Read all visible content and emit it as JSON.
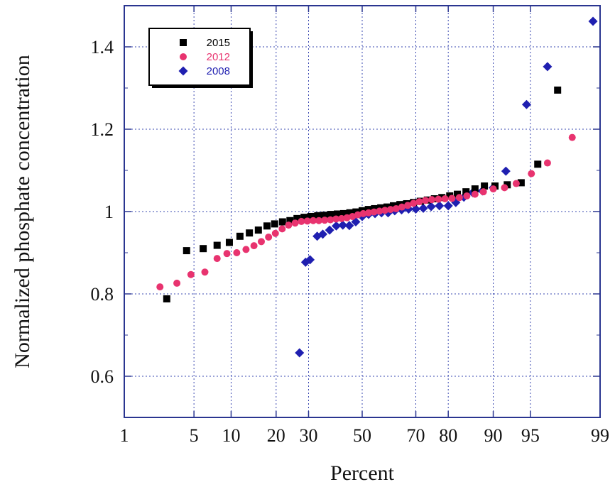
{
  "chart_data": {
    "type": "scatter",
    "title": "",
    "xlabel": "Percent",
    "ylabel": "Normalized phosphate concentration",
    "x_scale": "normal-probability",
    "x_ticks": [
      1,
      5,
      10,
      20,
      30,
      50,
      70,
      80,
      90,
      95,
      99
    ],
    "x_tick_labels": [
      "1",
      "5",
      "10",
      "20",
      "30",
      "50",
      "70",
      "80",
      "90",
      "95",
      "99"
    ],
    "y_ticks": [
      0.6,
      0.8,
      1,
      1.2,
      1.4
    ],
    "y_tick_labels": [
      "0.6",
      "0.8",
      "1",
      "1.2",
      "1.4"
    ],
    "xlim": [
      1,
      99
    ],
    "ylim": [
      0.5,
      1.5
    ],
    "grid": true,
    "legend_position": "top-left",
    "series": [
      {
        "name": "2015",
        "marker": "square",
        "color": "#000000",
        "points": [
          [
            2.8,
            0.788
          ],
          [
            4.3,
            0.905
          ],
          [
            6.0,
            0.91
          ],
          [
            7.8,
            0.918
          ],
          [
            9.7,
            0.925
          ],
          [
            11.6,
            0.94
          ],
          [
            13.5,
            0.948
          ],
          [
            15.5,
            0.955
          ],
          [
            17.6,
            0.965
          ],
          [
            19.6,
            0.97
          ],
          [
            21.8,
            0.975
          ],
          [
            24.0,
            0.978
          ],
          [
            26.2,
            0.983
          ],
          [
            28.5,
            0.986
          ],
          [
            30.8,
            0.988
          ],
          [
            33.2,
            0.99
          ],
          [
            35.6,
            0.991
          ],
          [
            38.0,
            0.993
          ],
          [
            40.4,
            0.994
          ],
          [
            42.8,
            0.995
          ],
          [
            45.2,
            0.997
          ],
          [
            47.6,
            0.999
          ],
          [
            50.0,
            1.002
          ],
          [
            52.4,
            1.005
          ],
          [
            54.8,
            1.007
          ],
          [
            57.2,
            1.009
          ],
          [
            59.6,
            1.011
          ],
          [
            62.0,
            1.014
          ],
          [
            64.4,
            1.017
          ],
          [
            66.8,
            1.019
          ],
          [
            69.2,
            1.022
          ],
          [
            71.5,
            1.025
          ],
          [
            73.8,
            1.028
          ],
          [
            76.0,
            1.031
          ],
          [
            78.2,
            1.034
          ],
          [
            80.4,
            1.038
          ],
          [
            82.4,
            1.042
          ],
          [
            84.5,
            1.048
          ],
          [
            86.5,
            1.055
          ],
          [
            88.4,
            1.062
          ],
          [
            90.3,
            1.062
          ],
          [
            92.2,
            1.065
          ],
          [
            94.0,
            1.07
          ],
          [
            95.7,
            1.115
          ],
          [
            97.2,
            1.295
          ]
        ]
      },
      {
        "name": "2012",
        "marker": "circle",
        "color": "#e8336f",
        "points": [
          [
            2.4,
            0.817
          ],
          [
            3.5,
            0.826
          ],
          [
            4.7,
            0.847
          ],
          [
            6.2,
            0.853
          ],
          [
            7.8,
            0.886
          ],
          [
            9.3,
            0.898
          ],
          [
            11.0,
            0.9
          ],
          [
            12.8,
            0.908
          ],
          [
            14.5,
            0.917
          ],
          [
            16.2,
            0.927
          ],
          [
            18.0,
            0.938
          ],
          [
            19.8,
            0.947
          ],
          [
            21.7,
            0.958
          ],
          [
            23.6,
            0.967
          ],
          [
            25.6,
            0.972
          ],
          [
            27.6,
            0.976
          ],
          [
            29.6,
            0.977
          ],
          [
            31.6,
            0.978
          ],
          [
            33.6,
            0.978
          ],
          [
            35.7,
            0.979
          ],
          [
            37.8,
            0.98
          ],
          [
            39.9,
            0.982
          ],
          [
            42.0,
            0.983
          ],
          [
            44.1,
            0.985
          ],
          [
            46.2,
            0.988
          ],
          [
            48.3,
            0.992
          ],
          [
            50.4,
            0.995
          ],
          [
            52.5,
            0.997
          ],
          [
            54.6,
            0.999
          ],
          [
            56.7,
            1.001
          ],
          [
            58.8,
            1.003
          ],
          [
            60.9,
            1.005
          ],
          [
            63.0,
            1.007
          ],
          [
            65.1,
            1.011
          ],
          [
            67.2,
            1.015
          ],
          [
            69.2,
            1.02
          ],
          [
            71.2,
            1.024
          ],
          [
            73.2,
            1.027
          ],
          [
            75.2,
            1.029
          ],
          [
            77.2,
            1.03
          ],
          [
            79.1,
            1.031
          ],
          [
            81.0,
            1.032
          ],
          [
            82.9,
            1.034
          ],
          [
            84.7,
            1.038
          ],
          [
            86.5,
            1.042
          ],
          [
            88.2,
            1.048
          ],
          [
            90.0,
            1.055
          ],
          [
            91.8,
            1.058
          ],
          [
            93.4,
            1.068
          ],
          [
            95.1,
            1.092
          ],
          [
            96.5,
            1.118
          ],
          [
            98.0,
            1.18
          ]
        ]
      },
      {
        "name": "2008",
        "marker": "diamond",
        "color": "#1f1fb0",
        "points": [
          [
            27.0,
            0.657
          ],
          [
            29.0,
            0.877
          ],
          [
            30.5,
            0.883
          ],
          [
            33.0,
            0.94
          ],
          [
            35.0,
            0.945
          ],
          [
            37.5,
            0.955
          ],
          [
            40.0,
            0.965
          ],
          [
            42.5,
            0.967
          ],
          [
            45.0,
            0.966
          ],
          [
            47.5,
            0.975
          ],
          [
            50.0,
            0.988
          ],
          [
            52.5,
            0.993
          ],
          [
            55.0,
            0.995
          ],
          [
            57.5,
            0.997
          ],
          [
            60.0,
            0.997
          ],
          [
            62.5,
            1.002
          ],
          [
            65.0,
            1.004
          ],
          [
            67.5,
            1.006
          ],
          [
            70.0,
            1.006
          ],
          [
            72.5,
            1.008
          ],
          [
            75.0,
            1.012
          ],
          [
            77.5,
            1.014
          ],
          [
            80.0,
            1.014
          ],
          [
            82.0,
            1.022
          ],
          [
            84.0,
            1.035
          ],
          [
            86.0,
            1.046
          ],
          [
            88.0,
            1.05
          ],
          [
            90.0,
            1.058
          ],
          [
            92.0,
            1.098
          ],
          [
            94.6,
            1.26
          ],
          [
            96.5,
            1.352
          ],
          [
            98.8,
            1.462
          ]
        ]
      }
    ]
  }
}
